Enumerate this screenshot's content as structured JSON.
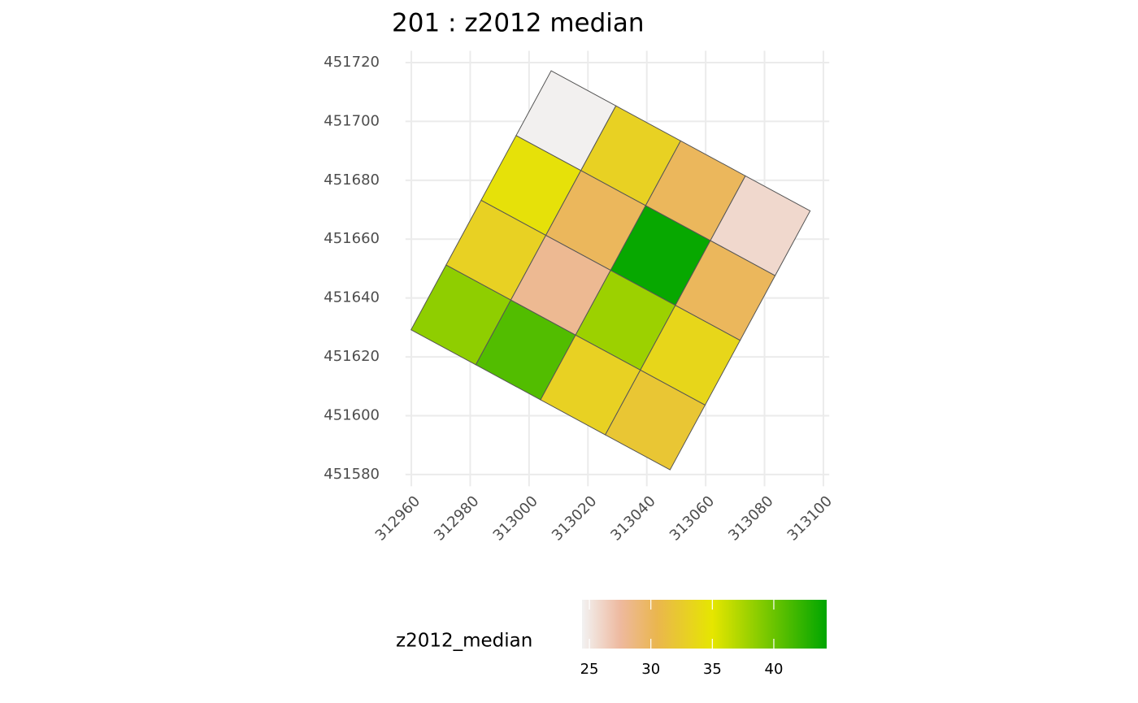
{
  "chart_data": {
    "type": "polygon-map",
    "title": "201 : z2012 median",
    "xlim": [
      312958,
      313102
    ],
    "ylim": [
      451576,
      451724
    ],
    "xticks": [
      312960,
      312980,
      313000,
      313020,
      313040,
      313060,
      313080,
      313100
    ],
    "yticks": [
      451580,
      451600,
      451620,
      451640,
      451660,
      451680,
      451700,
      451720
    ],
    "grid": true,
    "legend": {
      "title": "z2012_median",
      "position": "bottom",
      "lim": [
        24.4,
        44.3
      ],
      "ticks": [
        25,
        30,
        35,
        40
      ],
      "color_stops": [
        {
          "value": 24.4,
          "color": "#F2F2F2"
        },
        {
          "value": 27.5,
          "color": "#EEB99F"
        },
        {
          "value": 30.5,
          "color": "#EAB64E"
        },
        {
          "value": 35,
          "color": "#E6E600"
        },
        {
          "value": 44.3,
          "color": "#00A600"
        }
      ]
    },
    "outline_color": "#555555",
    "cells": [
      {
        "value": 24.5,
        "polygon": [
          [
            313007.5,
            451717.2
          ],
          [
            313029.5,
            451705.3
          ],
          [
            313017.6,
            451683.3
          ],
          [
            312995.6,
            451695.2
          ]
        ]
      },
      {
        "value": 33,
        "polygon": [
          [
            313029.5,
            451705.3
          ],
          [
            313051.5,
            451693.4
          ],
          [
            313039.6,
            451671.4
          ],
          [
            313017.6,
            451683.3
          ]
        ]
      },
      {
        "value": 30,
        "polygon": [
          [
            313051.5,
            451693.4
          ],
          [
            313073.5,
            451681.5
          ],
          [
            313061.6,
            451659.5
          ],
          [
            313039.6,
            451671.4
          ]
        ]
      },
      {
        "value": 25.8,
        "polygon": [
          [
            313073.5,
            451681.5
          ],
          [
            313095.5,
            451669.6
          ],
          [
            313083.6,
            451647.6
          ],
          [
            313061.6,
            451659.5
          ]
        ]
      },
      {
        "value": 34.5,
        "polygon": [
          [
            312995.6,
            451695.2
          ],
          [
            313017.6,
            451683.3
          ],
          [
            313005.7,
            451661.3
          ],
          [
            312983.7,
            451673.2
          ]
        ]
      },
      {
        "value": 30,
        "polygon": [
          [
            313017.6,
            451683.3
          ],
          [
            313039.6,
            451671.4
          ],
          [
            313027.7,
            451649.4
          ],
          [
            313005.7,
            451661.3
          ]
        ]
      },
      {
        "value": 44,
        "polygon": [
          [
            313039.6,
            451671.4
          ],
          [
            313061.6,
            451659.5
          ],
          [
            313049.7,
            451637.5
          ],
          [
            313027.7,
            451649.4
          ]
        ]
      },
      {
        "value": 30,
        "polygon": [
          [
            313061.6,
            451659.5
          ],
          [
            313083.6,
            451647.6
          ],
          [
            313071.7,
            451625.6
          ],
          [
            313049.7,
            451637.5
          ]
        ]
      },
      {
        "value": 33,
        "polygon": [
          [
            312983.7,
            451673.2
          ],
          [
            313005.7,
            451661.3
          ],
          [
            312993.8,
            451639.3
          ],
          [
            312971.8,
            451651.2
          ]
        ]
      },
      {
        "value": 28,
        "polygon": [
          [
            313005.7,
            451661.3
          ],
          [
            313027.7,
            451649.4
          ],
          [
            313015.8,
            451627.4
          ],
          [
            312993.8,
            451639.3
          ]
        ]
      },
      {
        "value": 38,
        "polygon": [
          [
            313027.7,
            451649.4
          ],
          [
            313049.7,
            451637.5
          ],
          [
            313037.8,
            451615.5
          ],
          [
            313015.8,
            451627.4
          ]
        ]
      },
      {
        "value": 33.5,
        "polygon": [
          [
            313049.7,
            451637.5
          ],
          [
            313071.7,
            451625.6
          ],
          [
            313059.8,
            451603.6
          ],
          [
            313037.8,
            451615.5
          ]
        ]
      },
      {
        "value": 38.5,
        "polygon": [
          [
            312971.8,
            451651.2
          ],
          [
            312993.8,
            451639.3
          ],
          [
            312981.9,
            451617.3
          ],
          [
            312959.9,
            451629.2
          ]
        ]
      },
      {
        "value": 41,
        "polygon": [
          [
            312993.8,
            451639.3
          ],
          [
            313015.8,
            451627.4
          ],
          [
            313003.9,
            451605.4
          ],
          [
            312981.9,
            451617.3
          ]
        ]
      },
      {
        "value": 33,
        "polygon": [
          [
            313015.8,
            451627.4
          ],
          [
            313037.8,
            451615.5
          ],
          [
            313025.9,
            451593.5
          ],
          [
            313003.9,
            451605.4
          ]
        ]
      },
      {
        "value": 32,
        "polygon": [
          [
            313037.8,
            451615.5
          ],
          [
            313059.8,
            451603.6
          ],
          [
            313047.9,
            451581.6
          ],
          [
            313025.9,
            451593.5
          ]
        ]
      }
    ]
  }
}
